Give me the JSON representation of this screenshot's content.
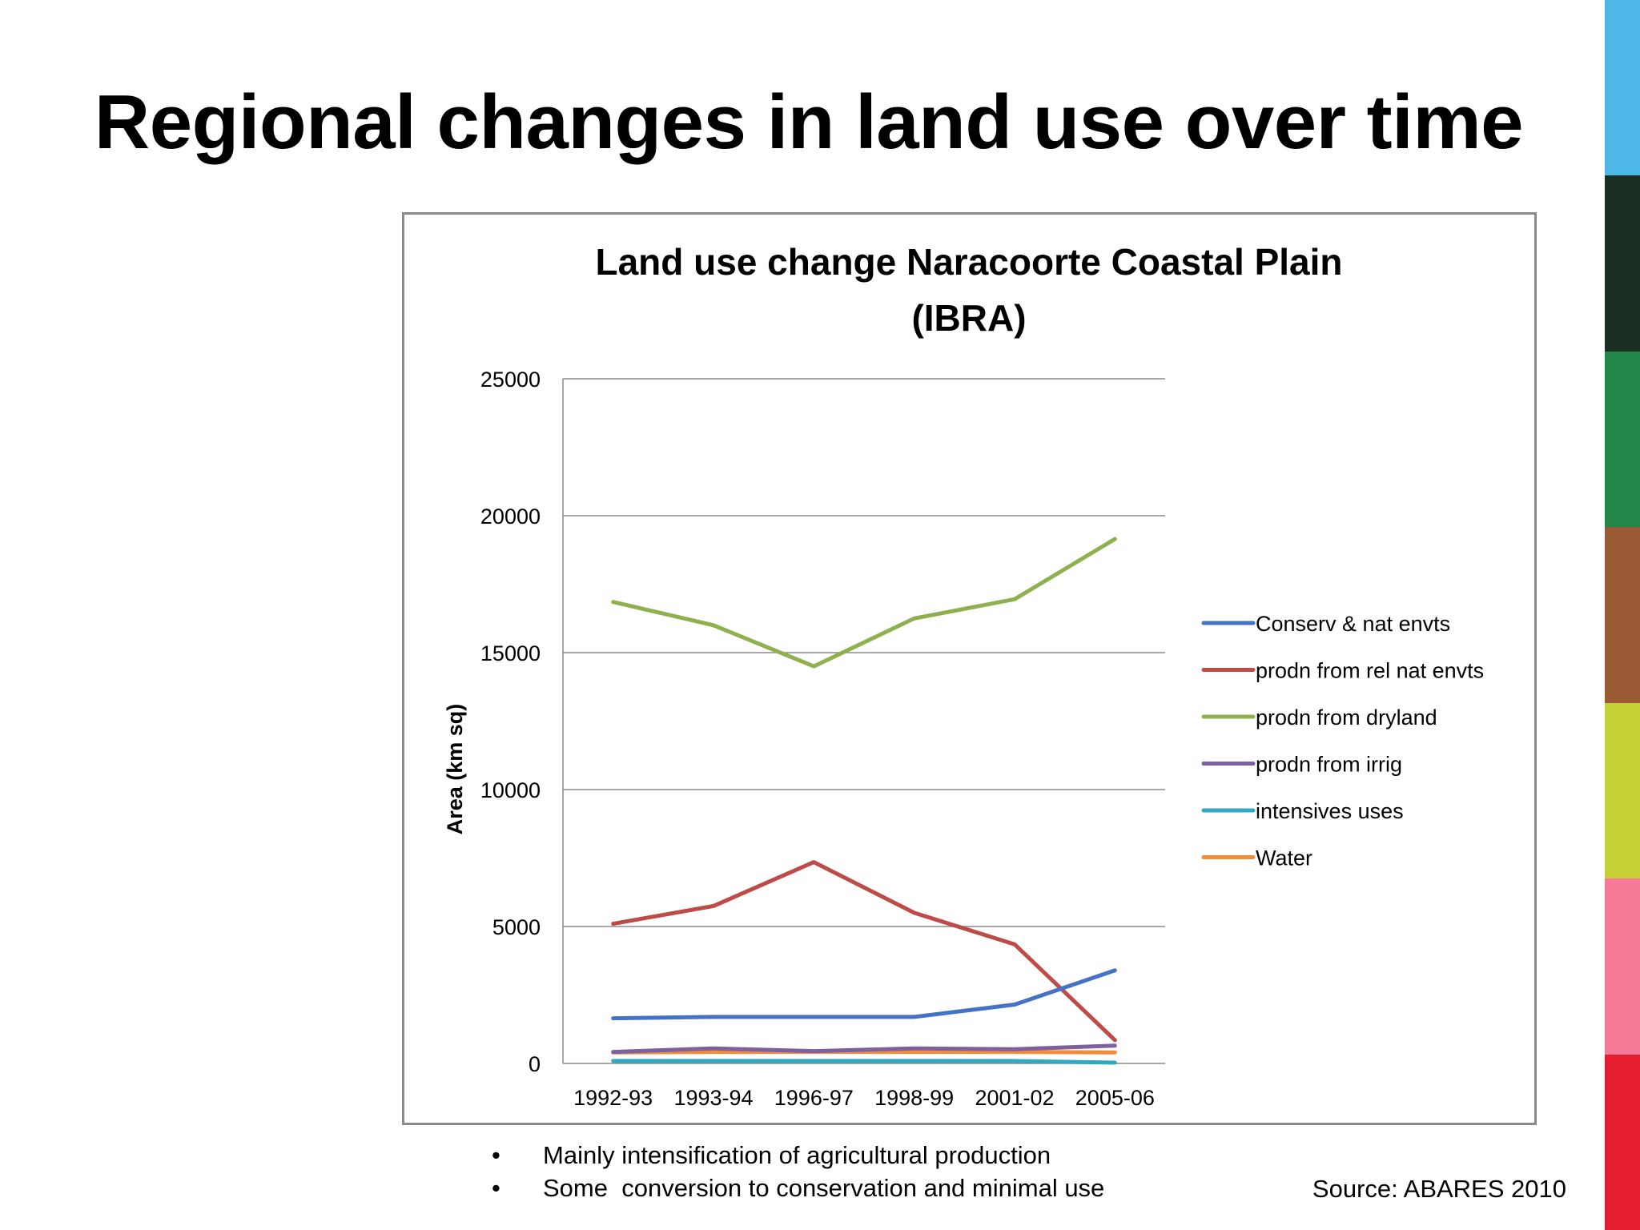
{
  "slide": {
    "title": "Regional changes in land use over time",
    "bullets": [
      "Mainly intensification of agricultural production",
      "Some  conversion to conservation and minimal use"
    ],
    "source": "Source: ABARES 2010",
    "side_bar_colors": [
      "#4db8e8",
      "#1a2e22",
      "#23874a",
      "#9a5a33",
      "#c5d134",
      "#f57a98",
      "#e51d31"
    ]
  },
  "chart_data": {
    "type": "line",
    "title_lines": [
      "Land use change Naracoorte Coastal Plain",
      "(IBRA)"
    ],
    "xlabel": "",
    "ylabel": "Area (km sq)",
    "categories": [
      "1992-93",
      "1993-94",
      "1996-97",
      "1998-99",
      "2001-02",
      "2005-06"
    ],
    "ylim": [
      0,
      25000
    ],
    "yticks": [
      0,
      5000,
      10000,
      15000,
      20000,
      25000
    ],
    "grid": true,
    "legend_position": "right",
    "series": [
      {
        "name": "Conserv & nat envts",
        "color": "#4472c4",
        "values": [
          1650,
          1700,
          1700,
          1700,
          2150,
          3400
        ]
      },
      {
        "name": "prodn from rel nat envts",
        "color": "#be4b48",
        "values": [
          5100,
          5750,
          7350,
          5500,
          4350,
          850
        ]
      },
      {
        "name": "prodn from dryland",
        "color": "#8fb04f",
        "values": [
          16850,
          16000,
          14500,
          16250,
          16950,
          19150
        ]
      },
      {
        "name": "prodn from irrig",
        "color": "#7d60a0",
        "values": [
          420,
          550,
          450,
          550,
          520,
          650
        ]
      },
      {
        "name": "intensives uses",
        "color": "#31a8c2",
        "values": [
          90,
          90,
          90,
          90,
          90,
          30
        ]
      },
      {
        "name": "Water",
        "color": "#f08c3a",
        "values": [
          400,
          420,
          420,
          420,
          420,
          400
        ]
      }
    ]
  }
}
